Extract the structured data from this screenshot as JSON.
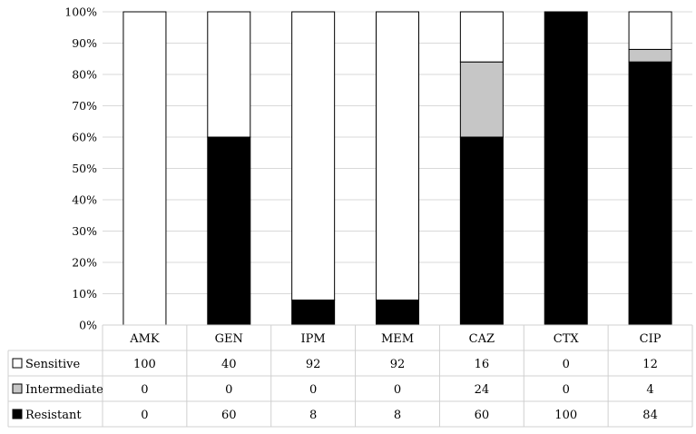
{
  "chart_data": {
    "type": "bar",
    "stacked": true,
    "percent_stacked": true,
    "categories": [
      "AMK",
      "GEN",
      "IPM",
      "MEM",
      "CAZ",
      "CTX",
      "CIP"
    ],
    "series": [
      {
        "name": "Sensitive",
        "color": "#ffffff",
        "values": [
          100,
          40,
          92,
          92,
          16,
          0,
          12
        ]
      },
      {
        "name": "Intermediate",
        "color": "#c6c6c6",
        "values": [
          0,
          0,
          0,
          0,
          24,
          0,
          4
        ]
      },
      {
        "name": "Resistant",
        "color": "#000000",
        "values": [
          0,
          60,
          8,
          8,
          60,
          100,
          84
        ]
      }
    ],
    "stack_order_bottom_to_top": [
      "Resistant",
      "Intermediate",
      "Sensitive"
    ],
    "ylim": [
      0,
      100
    ],
    "yticks": [
      0,
      10,
      20,
      30,
      40,
      50,
      60,
      70,
      80,
      90,
      100
    ],
    "ytick_labels": [
      "0%",
      "10%",
      "20%",
      "30%",
      "40%",
      "50%",
      "60%",
      "70%",
      "80%",
      "90%",
      "100%"
    ],
    "grid": true,
    "legend": "data-table",
    "data_table": true
  }
}
